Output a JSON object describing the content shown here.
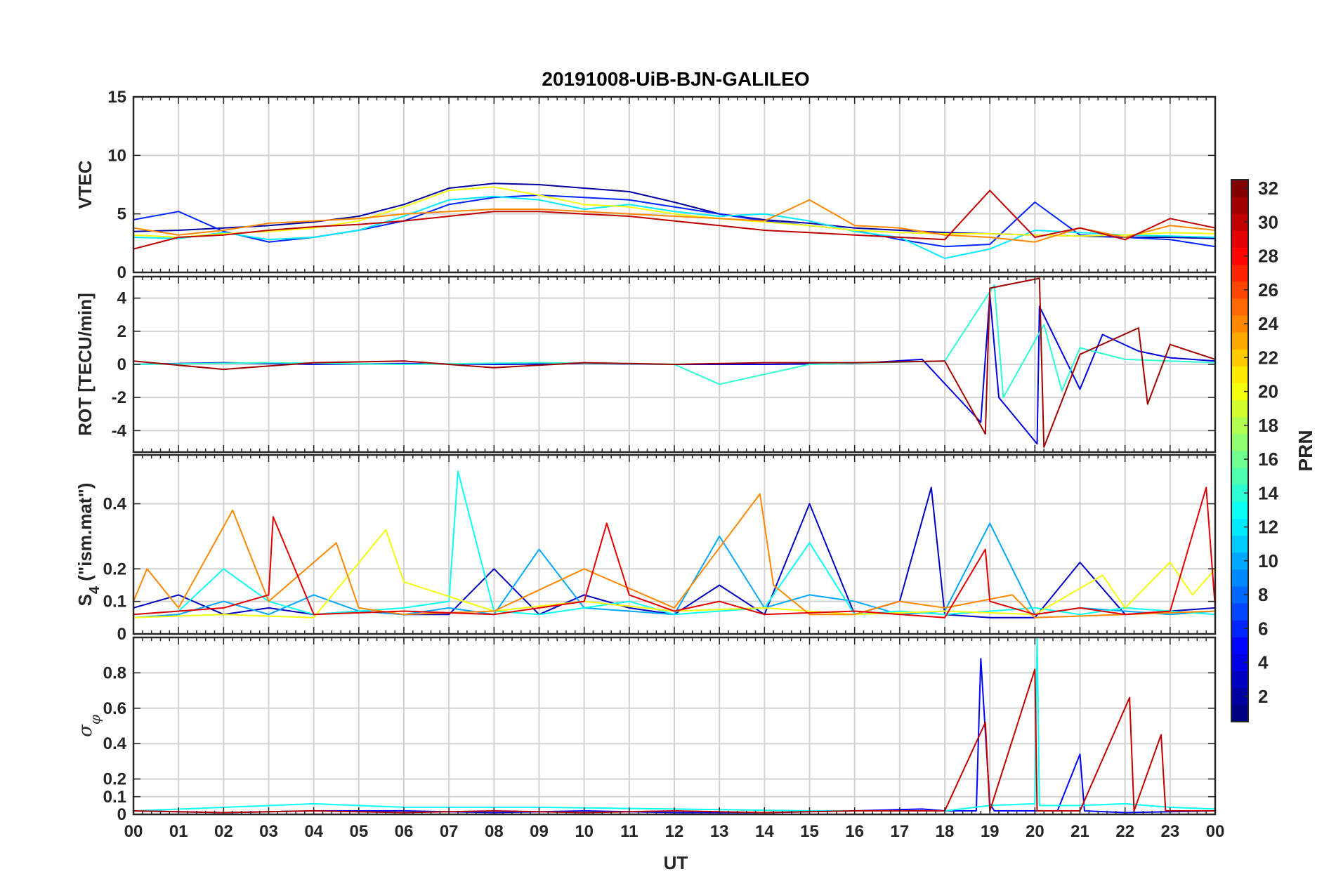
{
  "chart_data": {
    "type": "line",
    "title": "20191008-UiB-BJN-GALILEO",
    "xlabel": "UT",
    "xlim": [
      0,
      24
    ],
    "x_tick_labels": [
      "00",
      "01",
      "02",
      "03",
      "04",
      "05",
      "06",
      "07",
      "08",
      "09",
      "10",
      "11",
      "12",
      "13",
      "14",
      "15",
      "16",
      "17",
      "18",
      "19",
      "20",
      "21",
      "22",
      "23",
      "00"
    ],
    "colorbar": {
      "label": "PRN",
      "colormap": "jet",
      "range": [
        1,
        32
      ],
      "tick_labels": [
        "2",
        "4",
        "6",
        "8",
        "10",
        "12",
        "14",
        "16",
        "18",
        "20",
        "22",
        "24",
        "26",
        "28",
        "30",
        "32"
      ]
    },
    "panels": [
      {
        "id": "vtec",
        "ylabel": "VTEC",
        "ylim": [
          0,
          15
        ],
        "y_ticks": [
          0,
          5,
          10,
          15
        ],
        "y_tick_labels": [
          "0",
          "5",
          "10",
          "15"
        ],
        "grid": true,
        "series": [
          {
            "prn": 2,
            "x": [
              0,
              1,
              2,
              3,
              4,
              5,
              6,
              7,
              8,
              9,
              10,
              11,
              12,
              13,
              14,
              15,
              16,
              17,
              18,
              19,
              20,
              21,
              22,
              23,
              24
            ],
            "y": [
              3.5,
              3.6,
              3.8,
              4.0,
              4.3,
              4.8,
              5.8,
              7.2,
              7.6,
              7.5,
              7.2,
              6.9,
              6.0,
              5.0,
              4.5,
              4.2,
              3.8,
              3.6,
              3.4,
              3.3,
              3.2,
              3.1,
              3.0,
              3.0,
              2.9
            ]
          },
          {
            "prn": 6,
            "x": [
              0,
              1,
              2,
              3,
              4,
              5,
              6,
              7,
              8,
              9,
              10,
              11,
              12,
              13,
              14,
              15,
              16,
              17,
              18,
              19,
              20,
              21,
              22,
              23,
              24
            ],
            "y": [
              4.5,
              5.2,
              3.5,
              2.6,
              3.0,
              3.6,
              4.4,
              5.8,
              6.4,
              6.6,
              6.4,
              6.2,
              5.6,
              5.0,
              4.4,
              4.0,
              3.6,
              2.8,
              2.2,
              2.4,
              6.0,
              3.2,
              3.0,
              2.8,
              2.2
            ]
          },
          {
            "prn": 12,
            "x": [
              0,
              1,
              2,
              3,
              4,
              5,
              6,
              7,
              8,
              9,
              10,
              11,
              12,
              13,
              14,
              15,
              16,
              17,
              18,
              19,
              20,
              21,
              22,
              23,
              24
            ],
            "y": [
              3.0,
              2.9,
              3.4,
              2.8,
              3.0,
              3.6,
              4.8,
              6.2,
              6.5,
              6.2,
              5.4,
              5.8,
              5.2,
              4.8,
              5.0,
              4.4,
              3.5,
              3.0,
              1.2,
              2.0,
              3.6,
              3.4,
              3.2,
              3.1,
              3.0
            ]
          },
          {
            "prn": 20,
            "x": [
              0,
              1,
              2,
              3,
              4,
              5,
              6,
              7,
              8,
              9,
              10,
              11,
              12,
              13,
              14,
              15,
              16,
              17,
              18,
              19,
              20,
              21,
              22,
              23,
              24
            ],
            "y": [
              3.2,
              3.0,
              3.3,
              3.5,
              3.8,
              4.4,
              5.6,
              7.0,
              7.3,
              6.6,
              5.8,
              5.6,
              5.0,
              4.6,
              4.3,
              4.0,
              3.6,
              3.4,
              3.3,
              3.3,
              3.2,
              3.1,
              3.2,
              3.4,
              3.3
            ]
          },
          {
            "prn": 24,
            "x": [
              0,
              1,
              2,
              3,
              4,
              5,
              6,
              7,
              8,
              9,
              10,
              11,
              12,
              13,
              14,
              15,
              16,
              17,
              18,
              19,
              20,
              21,
              22,
              23,
              24
            ],
            "y": [
              3.8,
              3.2,
              3.6,
              4.2,
              4.4,
              4.6,
              5.0,
              5.2,
              5.4,
              5.4,
              5.2,
              5.0,
              4.8,
              4.6,
              4.4,
              6.2,
              4.0,
              3.8,
              3.2,
              3.0,
              2.6,
              3.8,
              3.0,
              4.0,
              3.6
            ]
          },
          {
            "prn": 30,
            "x": [
              0,
              1,
              2,
              3,
              4,
              5,
              6,
              7,
              8,
              9,
              10,
              11,
              12,
              13,
              14,
              15,
              16,
              17,
              18,
              19,
              20,
              21,
              22,
              23,
              24
            ],
            "y": [
              2.0,
              3.0,
              3.2,
              3.6,
              3.9,
              4.1,
              4.4,
              4.8,
              5.2,
              5.2,
              5.0,
              4.8,
              4.4,
              4.0,
              3.6,
              3.4,
              3.2,
              3.0,
              2.8,
              7.0,
              3.0,
              3.8,
              2.8,
              4.6,
              3.8
            ]
          }
        ]
      },
      {
        "id": "rot",
        "ylabel": "ROT [TECU/min]",
        "ylim": [
          -5.3,
          5.3
        ],
        "y_ticks": [
          -4,
          -2,
          0,
          2,
          4
        ],
        "y_tick_labels": [
          "-4",
          "-2",
          "0",
          "2",
          "4"
        ],
        "grid": true,
        "series": [
          {
            "prn": 4,
            "x": [
              0,
              2,
              4,
              6,
              8,
              10,
              12,
              14,
              16,
              17.5,
              18.8,
              19.0,
              19.2,
              20.05,
              20.1,
              21,
              21.5,
              22.3,
              23,
              24
            ],
            "y": [
              0,
              0.1,
              0,
              0.05,
              0,
              0.05,
              0,
              0,
              0.05,
              0.3,
              -3.5,
              4.2,
              -2.0,
              -4.8,
              3.5,
              -1.5,
              1.8,
              0.8,
              0.4,
              0.2
            ]
          },
          {
            "prn": 14,
            "x": [
              0,
              3,
              6,
              9,
              12,
              13,
              15,
              18,
              19.1,
              19.3,
              20.2,
              20.6,
              21,
              22,
              23,
              24
            ],
            "y": [
              0,
              0.1,
              0,
              0.1,
              0,
              -1.2,
              0,
              0.2,
              4.8,
              -2.0,
              2.4,
              -1.6,
              1.0,
              0.3,
              0.2,
              0.1
            ]
          },
          {
            "prn": 31,
            "x": [
              0,
              2,
              4,
              6,
              8,
              10,
              12,
              14,
              16,
              18,
              18.9,
              19.0,
              20.1,
              20.2,
              21,
              22.3,
              22.5,
              23,
              24
            ],
            "y": [
              0.2,
              -0.3,
              0.1,
              0.2,
              -0.2,
              0.1,
              0,
              0.1,
              0.1,
              0.2,
              -4.2,
              4.6,
              5.2,
              -5.0,
              0.6,
              2.2,
              -2.4,
              1.2,
              0.3
            ]
          }
        ]
      },
      {
        "id": "s4",
        "ylabel": "S4 (\"ism.mat\")",
        "ylabel_main": "S",
        "ylabel_sub": "4",
        "ylabel_rest": " (\"ism.mat\")",
        "ylim": [
          0,
          0.55
        ],
        "y_ticks": [
          0,
          0.1,
          0.2,
          0.4
        ],
        "y_tick_labels": [
          "0",
          "0.1",
          "0.2",
          "0.4"
        ],
        "grid": true,
        "series": [
          {
            "prn": 3,
            "x": [
              0,
              1,
              2,
              3,
              4,
              5,
              6,
              7,
              8,
              9,
              10,
              11,
              12,
              13,
              14,
              15,
              16,
              17,
              17.7,
              18,
              19,
              20,
              21,
              22,
              23,
              24
            ],
            "y": [
              0.08,
              0.12,
              0.06,
              0.08,
              0.06,
              0.07,
              0.06,
              0.06,
              0.2,
              0.06,
              0.12,
              0.08,
              0.06,
              0.15,
              0.06,
              0.4,
              0.06,
              0.1,
              0.45,
              0.06,
              0.05,
              0.05,
              0.22,
              0.06,
              0.07,
              0.08
            ]
          },
          {
            "prn": 10,
            "x": [
              0,
              1,
              2,
              3,
              4,
              5,
              6,
              7,
              8,
              9,
              10,
              11,
              12,
              13,
              14,
              15,
              16,
              17,
              18,
              19,
              20,
              21,
              22,
              23,
              24
            ],
            "y": [
              0.05,
              0.06,
              0.1,
              0.06,
              0.12,
              0.07,
              0.06,
              0.08,
              0.06,
              0.26,
              0.08,
              0.07,
              0.06,
              0.3,
              0.08,
              0.12,
              0.1,
              0.06,
              0.07,
              0.34,
              0.06,
              0.08,
              0.07,
              0.06,
              0.07
            ]
          },
          {
            "prn": 13,
            "x": [
              0,
              1,
              2,
              3,
              4,
              5,
              6,
              7,
              7.2,
              8,
              9,
              10,
              11,
              12,
              13,
              14,
              15,
              16,
              17,
              18,
              19,
              20,
              21,
              22,
              23,
              24
            ],
            "y": [
              0.06,
              0.07,
              0.2,
              0.1,
              0.06,
              0.07,
              0.08,
              0.1,
              0.5,
              0.07,
              0.06,
              0.08,
              0.1,
              0.06,
              0.07,
              0.08,
              0.28,
              0.06,
              0.07,
              0.06,
              0.07,
              0.08,
              0.06,
              0.08,
              0.07,
              0.06
            ]
          },
          {
            "prn": 20,
            "x": [
              0,
              2,
              4,
              5.6,
              6,
              8,
              10,
              12,
              14,
              16,
              18,
              20,
              21.5,
              22,
              23,
              23.5,
              24
            ],
            "y": [
              0.05,
              0.06,
              0.05,
              0.32,
              0.16,
              0.07,
              0.1,
              0.07,
              0.08,
              0.06,
              0.07,
              0.06,
              0.18,
              0.08,
              0.22,
              0.12,
              0.2
            ]
          },
          {
            "prn": 24,
            "x": [
              0,
              0.3,
              1,
              2.2,
              3,
              4.5,
              5,
              6,
              8,
              10,
              12,
              13.9,
              14.2,
              15,
              16,
              17,
              18,
              19.5,
              20,
              22,
              24
            ],
            "y": [
              0.1,
              0.2,
              0.08,
              0.38,
              0.1,
              0.28,
              0.08,
              0.06,
              0.07,
              0.2,
              0.08,
              0.43,
              0.15,
              0.06,
              0.06,
              0.1,
              0.08,
              0.12,
              0.05,
              0.06,
              0.07
            ]
          },
          {
            "prn": 29,
            "x": [
              0,
              2,
              3,
              3.1,
              4,
              6,
              8,
              10,
              10.5,
              11,
              12,
              13,
              14,
              16,
              18,
              18.9,
              19,
              20,
              21,
              22,
              23,
              23.8,
              24
            ],
            "y": [
              0.06,
              0.08,
              0.12,
              0.36,
              0.06,
              0.07,
              0.06,
              0.1,
              0.34,
              0.12,
              0.07,
              0.1,
              0.06,
              0.07,
              0.05,
              0.26,
              0.1,
              0.06,
              0.08,
              0.06,
              0.07,
              0.45,
              0.08
            ]
          }
        ]
      },
      {
        "id": "sigma_phi",
        "ylabel": "σφ",
        "ylabel_main": "σ",
        "ylabel_sub": "φ",
        "ylim": [
          0,
          1.0
        ],
        "y_ticks": [
          0,
          0.1,
          0.2,
          0.4,
          0.6,
          0.8
        ],
        "y_tick_labels": [
          "0",
          "0.1",
          "0.2",
          "0.4",
          "0.6",
          "0.8"
        ],
        "grid": true,
        "series": [
          {
            "prn": 5,
            "x": [
              0,
              2,
              4,
              6,
              8,
              10,
              12,
              14,
              16,
              17.5,
              18,
              18.7,
              18.8,
              19.0,
              19.1,
              20,
              20.5,
              21,
              21.1,
              22,
              24
            ],
            "y": [
              0.02,
              0.01,
              0.02,
              0.02,
              0.01,
              0.02,
              0.01,
              0.01,
              0.02,
              0.03,
              0.02,
              0.02,
              0.88,
              0.06,
              0.02,
              0.02,
              0.02,
              0.34,
              0.02,
              0.01,
              0.02
            ]
          },
          {
            "prn": 13,
            "x": [
              0,
              4,
              5,
              6,
              9,
              12,
              15,
              18,
              19,
              20,
              20.05,
              20.1,
              21,
              22,
              23,
              24
            ],
            "y": [
              0.02,
              0.06,
              0.05,
              0.04,
              0.04,
              0.03,
              0.02,
              0.02,
              0.05,
              0.06,
              1.0,
              0.05,
              0.05,
              0.06,
              0.04,
              0.03
            ]
          },
          {
            "prn": 30,
            "x": [
              0,
              2,
              4,
              6,
              8,
              10,
              12,
              14,
              16,
              18,
              18.9,
              19.0,
              20.0,
              20.05,
              21,
              22.1,
              22.2,
              22.8,
              22.9,
              23,
              24
            ],
            "y": [
              0.02,
              0.01,
              0.02,
              0.01,
              0.02,
              0.01,
              0.02,
              0.01,
              0.02,
              0.02,
              0.52,
              0.02,
              0.82,
              0.02,
              0.02,
              0.66,
              0.02,
              0.45,
              0.02,
              0.02,
              0.02
            ]
          }
        ]
      }
    ]
  }
}
